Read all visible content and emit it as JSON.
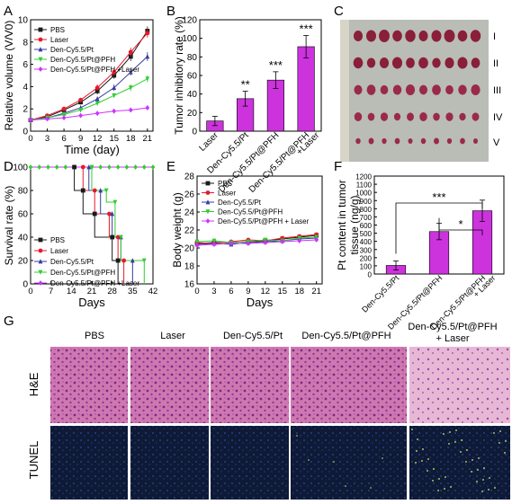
{
  "panel_letters": {
    "A": "A",
    "B": "B",
    "C": "C",
    "D": "D",
    "E": "E",
    "F": "F",
    "G": "G"
  },
  "colors": {
    "pbs": "#1a1a1a",
    "laser": "#e8192c",
    "pt": "#3a3aa0",
    "ptpfh": "#33cc33",
    "ptpfh_laser": "#cc33ff",
    "bar": "#cc33dd",
    "he": "#c96aa8",
    "tunel": "#142040"
  },
  "chart_data": [
    {
      "panel": "A",
      "type": "line",
      "xlabel": "Time (day)",
      "ylabel": "Relative  volume (V/V0)",
      "xlim": [
        0,
        22
      ],
      "ylim": [
        0,
        10
      ],
      "xticks": [
        "0",
        "3",
        "6",
        "9",
        "12",
        "15",
        "18",
        "21"
      ],
      "yticks": [
        "0",
        "2",
        "4",
        "6",
        "8",
        "10"
      ],
      "x": [
        0,
        3,
        6,
        9,
        12,
        15,
        18,
        21
      ],
      "series": [
        {
          "name": "PBS",
          "values": [
            1,
            1.3,
            1.9,
            2.6,
            3.6,
            5.0,
            6.7,
            9.0
          ],
          "err": [
            0.1,
            0.1,
            0.2,
            0.2,
            0.3,
            0.3,
            0.4,
            0.4
          ]
        },
        {
          "name": "Laser",
          "values": [
            1,
            1.4,
            2.0,
            2.8,
            3.9,
            5.3,
            7.1,
            8.8
          ],
          "err": [
            0.1,
            0.1,
            0.2,
            0.2,
            0.3,
            0.3,
            0.4,
            0.4
          ]
        },
        {
          "name": "Den-Cy5.5/Pt",
          "values": [
            1,
            1.2,
            1.6,
            2.1,
            2.9,
            3.9,
            5.3,
            6.7
          ],
          "err": [
            0.1,
            0.1,
            0.1,
            0.2,
            0.2,
            0.3,
            0.3,
            0.4
          ]
        },
        {
          "name": "Den-Cy5.5/Pt@PFH",
          "values": [
            1,
            1.2,
            1.5,
            1.9,
            2.5,
            3.2,
            3.9,
            4.7
          ],
          "err": [
            0.1,
            0.1,
            0.1,
            0.2,
            0.2,
            0.2,
            0.3,
            0.3
          ]
        },
        {
          "name": "Den-Cy5.5/Pt@PFH +Laser",
          "values": [
            1,
            1.1,
            1.2,
            1.4,
            1.6,
            1.8,
            1.9,
            2.1
          ],
          "err": [
            0.1,
            0.1,
            0.1,
            0.1,
            0.2,
            0.2,
            0.2,
            0.2
          ]
        }
      ]
    },
    {
      "panel": "B",
      "type": "bar",
      "ylabel": "Tumor inhibitory rate (%)",
      "ylim": [
        0,
        120
      ],
      "yticks": [
        "0",
        "20",
        "40",
        "60",
        "80",
        "100",
        "120"
      ],
      "categories": [
        "Laser",
        "Den-Cy5.5/Pt",
        "Den-Cy5.5/Pt@PFH",
        "Den-Cy5.5/Pt@PFH\n+Laser"
      ],
      "values": [
        11,
        35,
        55,
        91
      ],
      "err": [
        5,
        8,
        9,
        12
      ],
      "annotations": [
        "",
        "**",
        "***",
        "***"
      ]
    },
    {
      "panel": "D",
      "type": "line",
      "xlabel": "Days",
      "ylabel": "Survival rate (%)",
      "xlim": [
        0,
        42
      ],
      "ylim": [
        0,
        100
      ],
      "xticks": [
        "0",
        "7",
        "14",
        "21",
        "28",
        "35",
        "42"
      ],
      "yticks": [
        "0",
        "20",
        "40",
        "60",
        "80",
        "100"
      ],
      "series": [
        {
          "name": "PBS",
          "x": [
            0,
            15,
            15,
            18,
            18,
            22,
            22,
            28,
            28,
            30,
            30
          ],
          "values": [
            100,
            100,
            80,
            80,
            60,
            60,
            40,
            40,
            20,
            20,
            0
          ]
        },
        {
          "name": "Laser",
          "x": [
            0,
            18,
            18,
            22,
            22,
            27,
            27,
            30,
            30,
            32,
            32
          ],
          "values": [
            100,
            100,
            80,
            80,
            60,
            60,
            40,
            40,
            20,
            20,
            0
          ]
        },
        {
          "name": "Den-Cy5.5/Pt",
          "x": [
            0,
            20,
            20,
            24,
            24,
            28,
            28,
            31,
            31,
            35,
            35
          ],
          "values": [
            100,
            100,
            80,
            80,
            60,
            60,
            40,
            40,
            20,
            20,
            0
          ]
        },
        {
          "name": "Den-Cy5.5/Pt@PFH",
          "x": [
            0,
            21,
            21,
            26,
            26,
            29,
            29,
            31,
            31,
            39,
            39
          ],
          "values": [
            100,
            100,
            80,
            80,
            70,
            70,
            40,
            40,
            20,
            20,
            0
          ]
        },
        {
          "name": "Den-Cy5.5/Pt@PFH +Laser",
          "x": [
            0,
            42
          ],
          "values": [
            100,
            100
          ]
        }
      ]
    },
    {
      "panel": "E",
      "type": "line",
      "xlabel": "Days",
      "ylabel": "Body  weight (g)",
      "xlim": [
        0,
        22
      ],
      "ylim": [
        16,
        28
      ],
      "xticks": [
        "0",
        "3",
        "6",
        "9",
        "12",
        "15",
        "18",
        "21"
      ],
      "yticks": [
        "16",
        "18",
        "20",
        "22",
        "24",
        "26",
        "28"
      ],
      "x": [
        0,
        3,
        6,
        9,
        12,
        15,
        18,
        21
      ],
      "series": [
        {
          "name": "PBS",
          "values": [
            20.5,
            20.6,
            20.6,
            20.7,
            20.8,
            21.0,
            21.2,
            21.4
          ]
        },
        {
          "name": "Laser",
          "values": [
            20.6,
            20.5,
            20.7,
            20.9,
            20.8,
            21.1,
            21.3,
            21.5
          ]
        },
        {
          "name": "Den-Cy5.5/Pt",
          "values": [
            20.4,
            20.5,
            20.4,
            20.6,
            20.7,
            20.8,
            21.0,
            21.1
          ]
        },
        {
          "name": "Den-Cy5.5/Pt@PFH",
          "values": [
            20.7,
            20.8,
            20.6,
            20.7,
            20.9,
            20.8,
            21.1,
            21.2
          ]
        },
        {
          "name": "Den-Cy5.5/Pt@PFH + Laser",
          "values": [
            20.3,
            20.4,
            20.5,
            20.5,
            20.6,
            20.7,
            20.8,
            20.9
          ]
        }
      ]
    },
    {
      "panel": "F",
      "type": "bar",
      "ylabel": "Pt content in tumor\ntissue (ng/g)",
      "ylim": [
        0,
        1200
      ],
      "yticks": [
        "0",
        "100",
        "200",
        "300",
        "400",
        "500",
        "600",
        "700",
        "800",
        "900",
        "1000",
        "1100",
        "1200"
      ],
      "categories": [
        "Den-Cy5.5/Pt",
        "Den-Cy5.5/Pt@PFH",
        "Den-Cy5.5/Pt@PFH\n+ Laser"
      ],
      "values": [
        105,
        520,
        775
      ],
      "err": [
        55,
        100,
        130
      ],
      "annotations": [
        {
          "text": "***",
          "from": 0,
          "to": 2
        },
        {
          "text": "*",
          "from": 1,
          "to": 2
        }
      ]
    }
  ],
  "panelC": {
    "row_labels": [
      "I",
      "II",
      "III",
      "IV",
      "V"
    ]
  },
  "panelG": {
    "columns": [
      "PBS",
      "Laser",
      "Den-Cy5.5/Pt",
      "Den-Cy5.5/Pt@PFH",
      "Den-Cy5.5/Pt@PFH\n+ Laser"
    ],
    "rows": [
      "H&E",
      "TUNEL"
    ]
  }
}
